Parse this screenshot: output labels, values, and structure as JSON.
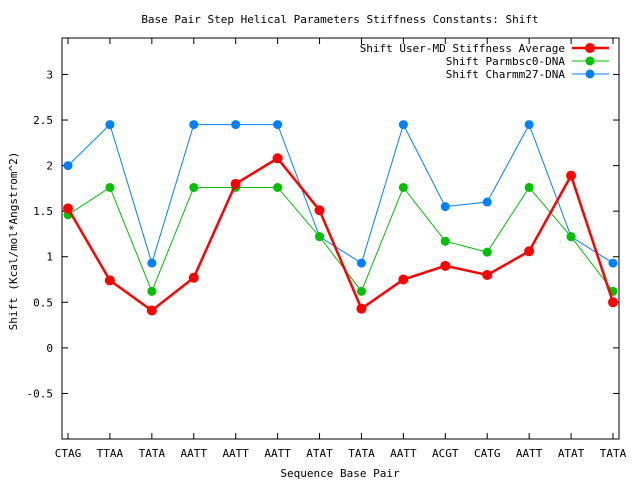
{
  "chart_data": {
    "type": "line",
    "title": "Base Pair Step Helical Parameters Stiffness Constants: Shift",
    "xlabel": "Sequence Base Pair",
    "ylabel": "Shift (Kcal/mol*Angstrom^2)",
    "ylim": [
      -1.0,
      3.4
    ],
    "yticks": [
      -0.5,
      0,
      0.5,
      1,
      1.5,
      2,
      2.5,
      3
    ],
    "ytick_labels": [
      "-0.5",
      "0",
      "0.5",
      "1",
      "1.5",
      "2",
      "2.5",
      "3"
    ],
    "categories": [
      "CTAG",
      "TTAA",
      "TATA",
      "AATT",
      "AATT",
      "AATT",
      "ATAT",
      "TATA",
      "AATT",
      "ACGT",
      "CATG",
      "AATT",
      "ATAT",
      "TATA"
    ],
    "grid": false,
    "legend_position": "top-right",
    "series": [
      {
        "name": "Shift User-MD Stiffness Average",
        "color": "#ff0000",
        "values": [
          1.53,
          0.74,
          0.41,
          0.77,
          1.8,
          2.08,
          1.51,
          0.43,
          0.75,
          0.9,
          0.8,
          1.06,
          1.89,
          0.5
        ]
      },
      {
        "name": "Shift Parmbsc0-DNA",
        "color": "#00c000",
        "values": [
          1.46,
          1.76,
          0.62,
          1.76,
          1.76,
          1.76,
          1.22,
          0.62,
          1.76,
          1.17,
          1.05,
          1.76,
          1.22,
          0.62
        ]
      },
      {
        "name": "Shift Charmm27-DNA",
        "color": "#0080ff",
        "values": [
          2.0,
          2.45,
          0.93,
          2.45,
          2.45,
          2.45,
          1.22,
          0.93,
          2.45,
          1.55,
          1.6,
          2.45,
          1.22,
          0.93
        ]
      }
    ]
  }
}
